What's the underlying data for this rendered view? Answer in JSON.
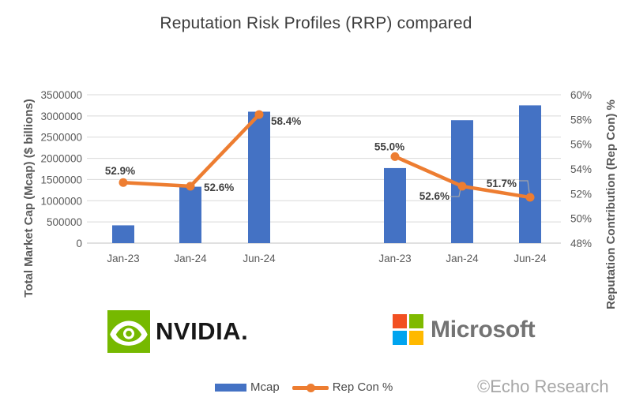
{
  "title": "Reputation Risk Profiles (RRP) compared",
  "watermark": "©Echo Research",
  "legend": {
    "mcap_label": "Mcap",
    "repcon_label": "Rep Con %"
  },
  "logos": {
    "nvidia_text": "NVIDIA.",
    "microsoft_text": "Microsoft"
  },
  "colors": {
    "bar": "#4472C4",
    "line": "#ED7D31",
    "grid": "#D9D9D9",
    "axis_line": "#C0C0C0",
    "axis_text": "#595959",
    "data_label_text": "#3F3F3F",
    "leader": "#A6A6A6",
    "nvidia_green": "#76B900",
    "ms_red": "#F25022",
    "ms_green": "#7FBA00",
    "ms_blue": "#00A4EF",
    "ms_yellow": "#FFB900"
  },
  "chart_data": {
    "type": "bar",
    "subtype": "combo bar + line, dual axis, two company groups",
    "title": "Reputation Risk Profiles (RRP) compared",
    "categories": [
      "Jan-23",
      "Jan-24",
      "Jun-24"
    ],
    "left_axis": {
      "label": "Total Market Cap (Mcap) ($ billions)",
      "min": 0,
      "max": 3500000,
      "step": 500000,
      "ticks": [
        0,
        500000,
        1000000,
        1500000,
        2000000,
        2500000,
        3000000,
        3500000
      ]
    },
    "right_axis": {
      "label": "Reputation Contribution (Rep Con) %",
      "min": 48,
      "max": 60,
      "step": 2,
      "tick_labels": [
        "48%",
        "50%",
        "52%",
        "54%",
        "56%",
        "58%",
        "60%"
      ]
    },
    "grid": true,
    "legend_position": "bottom",
    "series": [
      {
        "name": "Mcap",
        "type": "bar",
        "axis": "left"
      },
      {
        "name": "Rep Con %",
        "type": "line",
        "axis": "right"
      }
    ],
    "groups": [
      {
        "name": "NVIDIA",
        "mcap": [
          420000,
          1330000,
          3100000
        ],
        "rep_con": [
          52.9,
          52.6,
          58.4
        ],
        "rep_con_labels": [
          "52.9%",
          "52.6%",
          "58.4%"
        ]
      },
      {
        "name": "Microsoft",
        "mcap": [
          1770000,
          2900000,
          3250000
        ],
        "rep_con": [
          55.0,
          52.6,
          51.7
        ],
        "rep_con_labels": [
          "55.0%",
          "52.6%",
          "51.7%"
        ]
      }
    ]
  }
}
